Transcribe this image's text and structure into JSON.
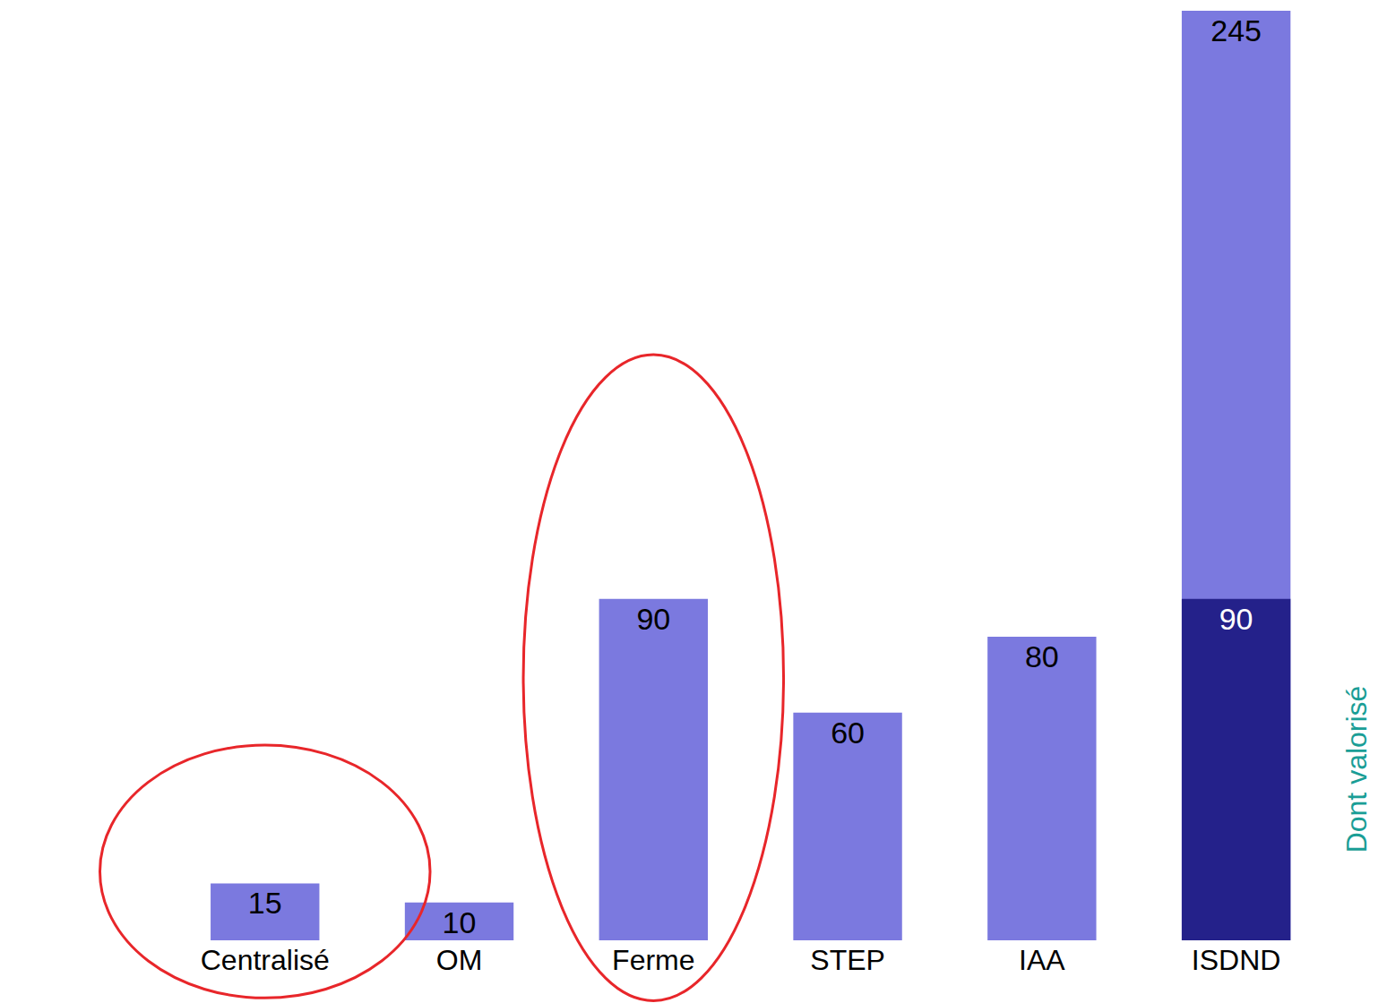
{
  "chart_data": {
    "type": "bar",
    "categories": [
      "Centralisé",
      "OM",
      "Ferme",
      "STEP",
      "IAA",
      "ISDND"
    ],
    "series": [
      {
        "color": "#7b79df",
        "values": [
          15,
          10,
          90,
          60,
          80,
          245
        ]
      },
      {
        "name": "Dont valorisé",
        "color": "#24218a",
        "values": [
          null,
          null,
          null,
          null,
          null,
          90
        ]
      }
    ],
    "ylim": [
      0,
      245
    ],
    "data_labels": true,
    "tick_labels": "x",
    "grid": false
  }
}
